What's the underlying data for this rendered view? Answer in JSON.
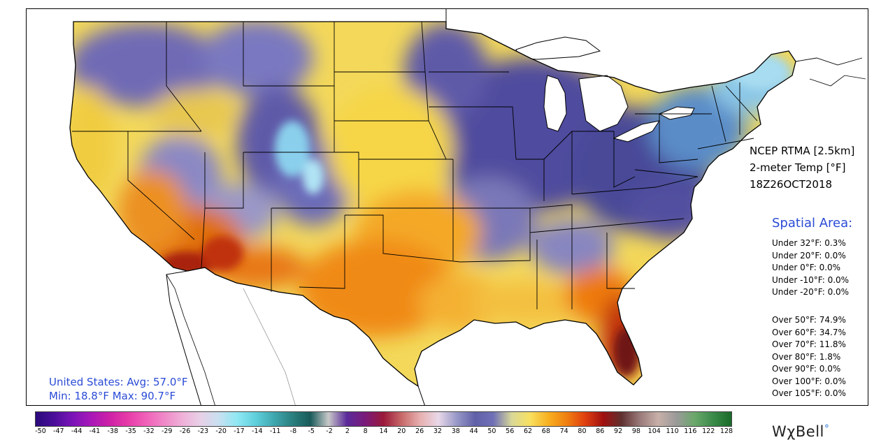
{
  "model_info": {
    "line1": "NCEP RTMA [2.5km]",
    "line2": "2-meter Temp [°F]",
    "line3": "18Z26OCT2018"
  },
  "spatial_area": {
    "title": "Spatial Area:",
    "under": [
      "Under 32°F: 0.3%",
      "Under 20°F: 0.0%",
      "Under 0°F: 0.0%",
      "Under -10°F: 0.0%",
      "Under -20°F: 0.0%"
    ],
    "over": [
      "Over 50°F: 74.9%",
      "Over 60°F: 34.7%",
      "Over 70°F: 11.8%",
      "Over 80°F: 1.8%",
      "Over 90°F: 0.0%",
      "Over 100°F: 0.0%",
      "Over 105°F: 0.0%"
    ]
  },
  "summary": {
    "avg": "United States: Avg:  57.0°F",
    "minmax": "Min:  18.8°F Max:  90.7°F"
  },
  "colorbar": {
    "labels": [
      "-50",
      "-47",
      "-44",
      "-41",
      "-38",
      "-35",
      "-32",
      "-29",
      "-26",
      "-23",
      "-20",
      "-17",
      "-14",
      "-11",
      "-8",
      "-5",
      "-2",
      "2",
      "8",
      "14",
      "20",
      "26",
      "32",
      "38",
      "44",
      "50",
      "56",
      "62",
      "68",
      "74",
      "80",
      "86",
      "92",
      "98",
      "104",
      "110",
      "116",
      "122",
      "128"
    ],
    "colors": [
      "#2a0a7a",
      "#4a0e9a",
      "#7a14b8",
      "#a818b8",
      "#cc20a8",
      "#e63aa8",
      "#f060b8",
      "#f088c8",
      "#f0b0d8",
      "#e8d0e8",
      "#c8e0f0",
      "#90e8f4",
      "#60d0dc",
      "#40a8b0",
      "#2a8080",
      "#1a5a5a",
      "#c8c8c8",
      "#5a2a9a",
      "#7a1a7a",
      "#9a1a3a",
      "#c86a6a",
      "#e8b0b0",
      "#e8d8e8",
      "#9898c8",
      "#6060a8",
      "#7070b8",
      "#d8d898",
      "#f8e060",
      "#f8b020",
      "#f08010",
      "#e04010",
      "#a01010",
      "#603030",
      "#9a7a7a",
      "#c8b0a8",
      "#9a9a9a",
      "#6aa86a",
      "#3a8a4a",
      "#1a6a2a"
    ]
  },
  "logo": {
    "text": "WχBell"
  },
  "colors": {
    "accent_blue": "#2a4bd6",
    "cold_purple": "#5a55a5",
    "cool_blue": "#6aa8d8",
    "mild_yellow": "#f5dc50",
    "warm_orange": "#f08c10",
    "hot_red": "#c83a10",
    "hottest": "#7a1818"
  }
}
